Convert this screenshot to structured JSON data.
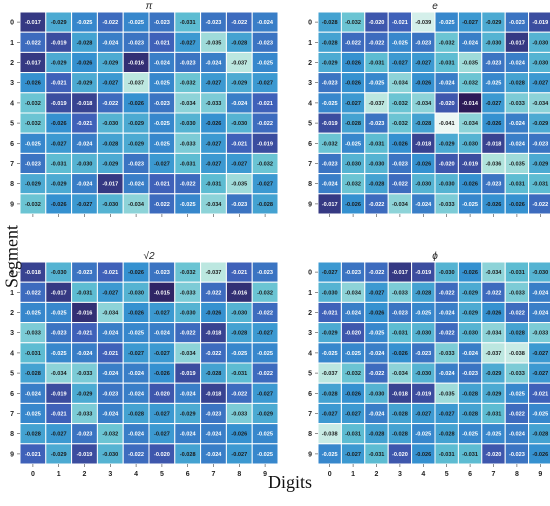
{
  "figure": {
    "ylabel": "Segment",
    "xlabel": "Digits"
  },
  "chart_data": [
    {
      "type": "heatmap",
      "title": "π",
      "x": [
        "0",
        "1",
        "2",
        "3",
        "4",
        "5",
        "6",
        "7",
        "8",
        "9"
      ],
      "y": [
        "0",
        "1",
        "2",
        "3",
        "4",
        "5",
        "6",
        "7",
        "8",
        "9"
      ],
      "values": [
        [
          "-0.017",
          "-0.029",
          "-0.025",
          "-0.022",
          "-0.025",
          "-0.023",
          "-0.031",
          "-0.023",
          "-0.022",
          "-0.024"
        ],
        [
          "-0.022",
          "-0.019",
          "-0.028",
          "-0.024",
          "-0.023",
          "-0.021",
          "-0.027",
          "-0.035",
          "-0.028",
          "-0.023"
        ],
        [
          "-0.017",
          "-0.029",
          "-0.026",
          "-0.029",
          "-0.016",
          "-0.024",
          "-0.023",
          "-0.024",
          "-0.037",
          "-0.025"
        ],
        [
          "-0.026",
          "-0.021",
          "-0.029",
          "-0.027",
          "-0.037",
          "-0.025",
          "-0.032",
          "-0.027",
          "-0.029",
          "-0.027"
        ],
        [
          "-0.032",
          "-0.019",
          "-0.018",
          "-0.022",
          "-0.026",
          "-0.023",
          "-0.034",
          "-0.033",
          "-0.024",
          "-0.021"
        ],
        [
          "-0.032",
          "-0.026",
          "-0.021",
          "-0.030",
          "-0.029",
          "-0.025",
          "-0.030",
          "-0.026",
          "-0.030",
          "-0.022"
        ],
        [
          "-0.025",
          "-0.027",
          "-0.024",
          "-0.028",
          "-0.029",
          "-0.025",
          "-0.033",
          "-0.027",
          "-0.021",
          "-0.019"
        ],
        [
          "-0.023",
          "-0.031",
          "-0.030",
          "-0.029",
          "-0.023",
          "-0.027",
          "-0.031",
          "-0.027",
          "-0.027",
          "-0.032"
        ],
        [
          "-0.029",
          "-0.029",
          "-0.024",
          "-0.017",
          "-0.024",
          "-0.021",
          "-0.022",
          "-0.031",
          "-0.035",
          "-0.027"
        ],
        [
          "-0.032",
          "-0.026",
          "-0.027",
          "-0.030",
          "-0.034",
          "-0.022",
          "-0.025",
          "-0.034",
          "-0.023",
          "-0.028"
        ]
      ]
    },
    {
      "type": "heatmap",
      "title": "e",
      "x": [
        "0",
        "1",
        "2",
        "3",
        "4",
        "5",
        "6",
        "7",
        "8",
        "9"
      ],
      "y": [
        "0",
        "1",
        "2",
        "3",
        "4",
        "5",
        "6",
        "7",
        "8",
        "9"
      ],
      "values": [
        [
          "-0.028",
          "-0.032",
          "-0.020",
          "-0.021",
          "-0.039",
          "-0.025",
          "-0.027",
          "-0.029",
          "-0.023",
          "-0.019"
        ],
        [
          "-0.028",
          "-0.022",
          "-0.022",
          "-0.025",
          "-0.023",
          "-0.032",
          "-0.024",
          "-0.030",
          "-0.017",
          "-0.030"
        ],
        [
          "-0.029",
          "-0.026",
          "-0.031",
          "-0.027",
          "-0.027",
          "-0.031",
          "-0.035",
          "-0.023",
          "-0.024",
          "-0.030"
        ],
        [
          "-0.023",
          "-0.026",
          "-0.025",
          "-0.034",
          "-0.026",
          "-0.024",
          "-0.032",
          "-0.025",
          "-0.028",
          "-0.027"
        ],
        [
          "-0.025",
          "-0.027",
          "-0.037",
          "-0.032",
          "-0.034",
          "-0.020",
          "-0.014",
          "-0.027",
          "-0.033",
          "-0.034"
        ],
        [
          "-0.019",
          "-0.028",
          "-0.023",
          "-0.032",
          "-0.028",
          "-0.041",
          "-0.034",
          "-0.026",
          "-0.024",
          "-0.029"
        ],
        [
          "-0.032",
          "-0.025",
          "-0.031",
          "-0.026",
          "-0.018",
          "-0.029",
          "-0.030",
          "-0.018",
          "-0.024",
          "-0.023"
        ],
        [
          "-0.023",
          "-0.030",
          "-0.030",
          "-0.023",
          "-0.026",
          "-0.020",
          "-0.019",
          "-0.036",
          "-0.035",
          "-0.029"
        ],
        [
          "-0.024",
          "-0.032",
          "-0.028",
          "-0.022",
          "-0.030",
          "-0.030",
          "-0.026",
          "-0.023",
          "-0.031",
          "-0.031"
        ],
        [
          "-0.017",
          "-0.026",
          "-0.022",
          "-0.034",
          "-0.024",
          "-0.033",
          "-0.025",
          "-0.026",
          "-0.026",
          "-0.022"
        ]
      ]
    },
    {
      "type": "heatmap",
      "title": "√2",
      "x": [
        "0",
        "1",
        "2",
        "3",
        "4",
        "5",
        "6",
        "7",
        "8",
        "9"
      ],
      "y": [
        "0",
        "1",
        "2",
        "3",
        "4",
        "5",
        "6",
        "7",
        "8",
        "9"
      ],
      "values": [
        [
          "-0.018",
          "-0.030",
          "-0.023",
          "-0.021",
          "-0.026",
          "-0.023",
          "-0.032",
          "-0.037",
          "-0.021",
          "-0.023"
        ],
        [
          "-0.022",
          "-0.017",
          "-0.031",
          "-0.027",
          "-0.030",
          "-0.015",
          "-0.033",
          "-0.022",
          "-0.016",
          "-0.032"
        ],
        [
          "-0.025",
          "-0.025",
          "-0.016",
          "-0.034",
          "-0.026",
          "-0.027",
          "-0.030",
          "-0.026",
          "-0.030",
          "-0.022"
        ],
        [
          "-0.033",
          "-0.023",
          "-0.021",
          "-0.024",
          "-0.025",
          "-0.024",
          "-0.022",
          "-0.018",
          "-0.028",
          "-0.027"
        ],
        [
          "-0.031",
          "-0.025",
          "-0.024",
          "-0.021",
          "-0.027",
          "-0.027",
          "-0.034",
          "-0.022",
          "-0.025",
          "-0.025"
        ],
        [
          "-0.028",
          "-0.034",
          "-0.033",
          "-0.024",
          "-0.024",
          "-0.026",
          "-0.019",
          "-0.028",
          "-0.031",
          "-0.022"
        ],
        [
          "-0.024",
          "-0.019",
          "-0.029",
          "-0.023",
          "-0.024",
          "-0.020",
          "-0.024",
          "-0.018",
          "-0.022",
          "-0.027"
        ],
        [
          "-0.025",
          "-0.021",
          "-0.033",
          "-0.024",
          "-0.028",
          "-0.027",
          "-0.029",
          "-0.023",
          "-0.033",
          "-0.029"
        ],
        [
          "-0.028",
          "-0.027",
          "-0.023",
          "-0.032",
          "-0.024",
          "-0.027",
          "-0.024",
          "-0.024",
          "-0.026",
          "-0.025"
        ],
        [
          "-0.021",
          "-0.029",
          "-0.019",
          "-0.030",
          "-0.022",
          "-0.020",
          "-0.028",
          "-0.024",
          "-0.027",
          "-0.025"
        ]
      ]
    },
    {
      "type": "heatmap",
      "title": "ϕ",
      "x": [
        "0",
        "1",
        "2",
        "3",
        "4",
        "5",
        "6",
        "7",
        "8",
        "9"
      ],
      "y": [
        "0",
        "1",
        "2",
        "3",
        "4",
        "5",
        "6",
        "7",
        "8",
        "9"
      ],
      "values": [
        [
          "-0.027",
          "-0.023",
          "-0.022",
          "-0.017",
          "-0.019",
          "-0.030",
          "-0.026",
          "-0.034",
          "-0.031",
          "-0.030"
        ],
        [
          "-0.030",
          "-0.034",
          "-0.027",
          "-0.033",
          "-0.028",
          "-0.022",
          "-0.029",
          "-0.022",
          "-0.033",
          "-0.024"
        ],
        [
          "-0.021",
          "-0.024",
          "-0.026",
          "-0.023",
          "-0.025",
          "-0.024",
          "-0.029",
          "-0.026",
          "-0.022",
          "-0.024"
        ],
        [
          "-0.029",
          "-0.020",
          "-0.025",
          "-0.031",
          "-0.030",
          "-0.022",
          "-0.030",
          "-0.034",
          "-0.028",
          "-0.033"
        ],
        [
          "-0.025",
          "-0.025",
          "-0.024",
          "-0.026",
          "-0.023",
          "-0.033",
          "-0.024",
          "-0.037",
          "-0.038",
          "-0.027"
        ],
        [
          "-0.037",
          "-0.032",
          "-0.022",
          "-0.034",
          "-0.030",
          "-0.024",
          "-0.023",
          "-0.029",
          "-0.033",
          "-0.027"
        ],
        [
          "-0.028",
          "-0.026",
          "-0.030",
          "-0.018",
          "-0.019",
          "-0.035",
          "-0.028",
          "-0.029",
          "-0.025",
          "-0.021"
        ],
        [
          "-0.027",
          "-0.027",
          "-0.024",
          "-0.028",
          "-0.027",
          "-0.027",
          "-0.028",
          "-0.031",
          "-0.022",
          "-0.025"
        ],
        [
          "-0.038",
          "-0.031",
          "-0.028",
          "-0.028",
          "-0.025",
          "-0.028",
          "-0.025",
          "-0.025",
          "-0.024",
          "-0.028"
        ],
        [
          "-0.025",
          "-0.027",
          "-0.031",
          "-0.020",
          "-0.026",
          "-0.031",
          "-0.031",
          "-0.020",
          "-0.023",
          "-0.026"
        ]
      ]
    }
  ]
}
